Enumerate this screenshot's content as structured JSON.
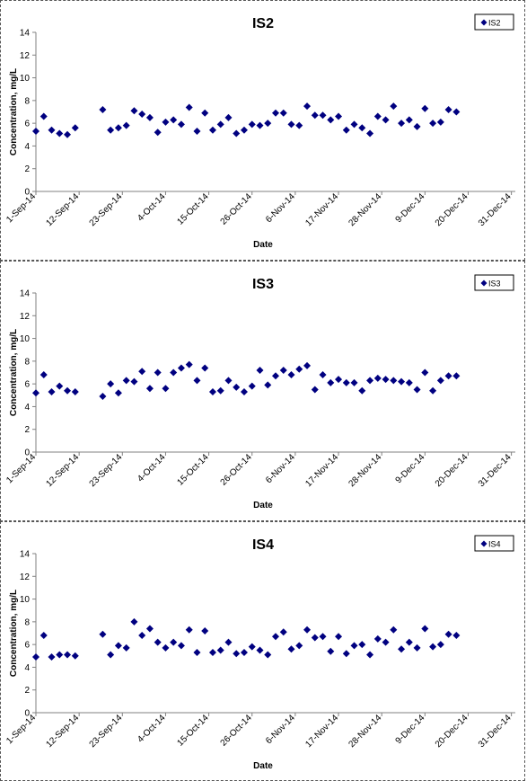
{
  "colors": {
    "marker": "#000080",
    "axis": "#808080",
    "text": "#000000",
    "plot_bg": "#ffffff"
  },
  "chart_data": [
    {
      "type": "scatter",
      "title": "IS2",
      "xlabel": "Date",
      "ylabel": "Concentration, mg/L",
      "legend": "top-right",
      "grid": false,
      "ylim": [
        0,
        14
      ],
      "yticks": [
        0,
        2,
        4,
        6,
        8,
        10,
        12,
        14
      ],
      "xlim": [
        "2014-09-01",
        "2015-01-01"
      ],
      "xticks": [
        "1-Sep-14",
        "12-Sep-14",
        "23-Sep-14",
        "4-Oct-14",
        "15-Oct-14",
        "26-Oct-14",
        "6-Nov-14",
        "17-Nov-14",
        "28-Nov-14",
        "9-Dec-14",
        "20-Dec-14",
        "31-Dec-14"
      ],
      "series": [
        {
          "name": "IS2",
          "points": [
            [
              "2014-09-01",
              5.3
            ],
            [
              "2014-09-03",
              6.6
            ],
            [
              "2014-09-05",
              5.4
            ],
            [
              "2014-09-07",
              5.1
            ],
            [
              "2014-09-09",
              5.0
            ],
            [
              "2014-09-11",
              5.6
            ],
            [
              "2014-09-18",
              7.2
            ],
            [
              "2014-09-20",
              5.4
            ],
            [
              "2014-09-22",
              5.6
            ],
            [
              "2014-09-24",
              5.8
            ],
            [
              "2014-09-26",
              7.1
            ],
            [
              "2014-09-28",
              6.8
            ],
            [
              "2014-09-30",
              6.5
            ],
            [
              "2014-10-02",
              5.2
            ],
            [
              "2014-10-04",
              6.1
            ],
            [
              "2014-10-06",
              6.3
            ],
            [
              "2014-10-08",
              5.9
            ],
            [
              "2014-10-10",
              7.4
            ],
            [
              "2014-10-12",
              5.3
            ],
            [
              "2014-10-14",
              6.9
            ],
            [
              "2014-10-16",
              5.4
            ],
            [
              "2014-10-18",
              5.9
            ],
            [
              "2014-10-20",
              6.5
            ],
            [
              "2014-10-22",
              5.1
            ],
            [
              "2014-10-24",
              5.4
            ],
            [
              "2014-10-26",
              5.9
            ],
            [
              "2014-10-28",
              5.8
            ],
            [
              "2014-10-30",
              6.0
            ],
            [
              "2014-11-01",
              6.9
            ],
            [
              "2014-11-03",
              6.9
            ],
            [
              "2014-11-05",
              5.9
            ],
            [
              "2014-11-07",
              5.8
            ],
            [
              "2014-11-09",
              7.5
            ],
            [
              "2014-11-11",
              6.7
            ],
            [
              "2014-11-13",
              6.7
            ],
            [
              "2014-11-15",
              6.3
            ],
            [
              "2014-11-17",
              6.6
            ],
            [
              "2014-11-19",
              5.4
            ],
            [
              "2014-11-21",
              5.9
            ],
            [
              "2014-11-23",
              5.6
            ],
            [
              "2014-11-25",
              5.1
            ],
            [
              "2014-11-27",
              6.6
            ],
            [
              "2014-11-29",
              6.3
            ],
            [
              "2014-12-01",
              7.5
            ],
            [
              "2014-12-03",
              6.0
            ],
            [
              "2014-12-05",
              6.3
            ],
            [
              "2014-12-07",
              5.7
            ],
            [
              "2014-12-09",
              7.3
            ],
            [
              "2014-12-11",
              6.0
            ],
            [
              "2014-12-13",
              6.1
            ],
            [
              "2014-12-15",
              7.2
            ],
            [
              "2014-12-17",
              7.0
            ]
          ]
        }
      ]
    },
    {
      "type": "scatter",
      "title": "IS3",
      "xlabel": "Date",
      "ylabel": "Concentration, mg/L",
      "legend": "top-right",
      "grid": false,
      "ylim": [
        0,
        14
      ],
      "yticks": [
        0,
        2,
        4,
        6,
        8,
        10,
        12,
        14
      ],
      "xlim": [
        "2014-09-01",
        "2015-01-01"
      ],
      "xticks": [
        "1-Sep-14",
        "12-Sep-14",
        "23-Sep-14",
        "4-Oct-14",
        "15-Oct-14",
        "26-Oct-14",
        "6-Nov-14",
        "17-Nov-14",
        "28-Nov-14",
        "9-Dec-14",
        "20-Dec-14",
        "31-Dec-14"
      ],
      "series": [
        {
          "name": "IS3",
          "points": [
            [
              "2014-09-01",
              5.2
            ],
            [
              "2014-09-03",
              6.8
            ],
            [
              "2014-09-05",
              5.3
            ],
            [
              "2014-09-07",
              5.8
            ],
            [
              "2014-09-09",
              5.4
            ],
            [
              "2014-09-11",
              5.3
            ],
            [
              "2014-09-18",
              4.9
            ],
            [
              "2014-09-20",
              6.0
            ],
            [
              "2014-09-22",
              5.2
            ],
            [
              "2014-09-24",
              6.3
            ],
            [
              "2014-09-26",
              6.2
            ],
            [
              "2014-09-28",
              7.1
            ],
            [
              "2014-09-30",
              5.6
            ],
            [
              "2014-10-02",
              7.0
            ],
            [
              "2014-10-04",
              5.6
            ],
            [
              "2014-10-06",
              7.0
            ],
            [
              "2014-10-08",
              7.4
            ],
            [
              "2014-10-10",
              7.7
            ],
            [
              "2014-10-12",
              6.3
            ],
            [
              "2014-10-14",
              7.4
            ],
            [
              "2014-10-16",
              5.3
            ],
            [
              "2014-10-18",
              5.4
            ],
            [
              "2014-10-20",
              6.3
            ],
            [
              "2014-10-22",
              5.7
            ],
            [
              "2014-10-24",
              5.3
            ],
            [
              "2014-10-26",
              5.8
            ],
            [
              "2014-10-28",
              7.2
            ],
            [
              "2014-10-30",
              5.9
            ],
            [
              "2014-11-01",
              6.7
            ],
            [
              "2014-11-03",
              7.2
            ],
            [
              "2014-11-05",
              6.8
            ],
            [
              "2014-11-07",
              7.3
            ],
            [
              "2014-11-09",
              7.6
            ],
            [
              "2014-11-11",
              5.5
            ],
            [
              "2014-11-13",
              6.8
            ],
            [
              "2014-11-15",
              6.1
            ],
            [
              "2014-11-17",
              6.4
            ],
            [
              "2014-11-19",
              6.1
            ],
            [
              "2014-11-21",
              6.1
            ],
            [
              "2014-11-23",
              5.4
            ],
            [
              "2014-11-25",
              6.3
            ],
            [
              "2014-11-27",
              6.5
            ],
            [
              "2014-11-29",
              6.4
            ],
            [
              "2014-12-01",
              6.3
            ],
            [
              "2014-12-03",
              6.2
            ],
            [
              "2014-12-05",
              6.1
            ],
            [
              "2014-12-07",
              5.5
            ],
            [
              "2014-12-09",
              7.0
            ],
            [
              "2014-12-11",
              5.4
            ],
            [
              "2014-12-13",
              6.3
            ],
            [
              "2014-12-15",
              6.7
            ],
            [
              "2014-12-17",
              6.7
            ]
          ]
        }
      ]
    },
    {
      "type": "scatter",
      "title": "IS4",
      "xlabel": "Date",
      "ylabel": "Concentration, mg/L",
      "legend": "top-right",
      "grid": false,
      "ylim": [
        0,
        14
      ],
      "yticks": [
        0,
        2,
        4,
        6,
        8,
        10,
        12,
        14
      ],
      "xlim": [
        "2014-09-01",
        "2015-01-01"
      ],
      "xticks": [
        "1-Sep-14",
        "12-Sep-14",
        "23-Sep-14",
        "4-Oct-14",
        "15-Oct-14",
        "26-Oct-14",
        "6-Nov-14",
        "17-Nov-14",
        "28-Nov-14",
        "9-Dec-14",
        "20-Dec-14",
        "31-Dec-14"
      ],
      "series": [
        {
          "name": "IS4",
          "points": [
            [
              "2014-09-01",
              4.9
            ],
            [
              "2014-09-03",
              6.8
            ],
            [
              "2014-09-05",
              4.9
            ],
            [
              "2014-09-07",
              5.1
            ],
            [
              "2014-09-09",
              5.1
            ],
            [
              "2014-09-11",
              5.0
            ],
            [
              "2014-09-18",
              6.9
            ],
            [
              "2014-09-20",
              5.1
            ],
            [
              "2014-09-22",
              5.9
            ],
            [
              "2014-09-24",
              5.7
            ],
            [
              "2014-09-26",
              8.0
            ],
            [
              "2014-09-28",
              6.8
            ],
            [
              "2014-09-30",
              7.4
            ],
            [
              "2014-10-02",
              6.2
            ],
            [
              "2014-10-04",
              5.7
            ],
            [
              "2014-10-06",
              6.2
            ],
            [
              "2014-10-08",
              5.9
            ],
            [
              "2014-10-10",
              7.3
            ],
            [
              "2014-10-12",
              5.3
            ],
            [
              "2014-10-14",
              7.2
            ],
            [
              "2014-10-16",
              5.3
            ],
            [
              "2014-10-18",
              5.5
            ],
            [
              "2014-10-20",
              6.2
            ],
            [
              "2014-10-22",
              5.2
            ],
            [
              "2014-10-24",
              5.3
            ],
            [
              "2014-10-26",
              5.8
            ],
            [
              "2014-10-28",
              5.5
            ],
            [
              "2014-10-30",
              5.1
            ],
            [
              "2014-11-01",
              6.7
            ],
            [
              "2014-11-03",
              7.1
            ],
            [
              "2014-11-05",
              5.6
            ],
            [
              "2014-11-07",
              5.9
            ],
            [
              "2014-11-09",
              7.3
            ],
            [
              "2014-11-11",
              6.6
            ],
            [
              "2014-11-13",
              6.7
            ],
            [
              "2014-11-15",
              5.4
            ],
            [
              "2014-11-17",
              6.7
            ],
            [
              "2014-11-19",
              5.2
            ],
            [
              "2014-11-21",
              5.9
            ],
            [
              "2014-11-23",
              6.0
            ],
            [
              "2014-11-25",
              5.1
            ],
            [
              "2014-11-27",
              6.5
            ],
            [
              "2014-11-29",
              6.2
            ],
            [
              "2014-12-01",
              7.3
            ],
            [
              "2014-12-03",
              5.6
            ],
            [
              "2014-12-05",
              6.2
            ],
            [
              "2014-12-07",
              5.7
            ],
            [
              "2014-12-09",
              7.4
            ],
            [
              "2014-12-11",
              5.8
            ],
            [
              "2014-12-13",
              6.0
            ],
            [
              "2014-12-15",
              6.9
            ],
            [
              "2014-12-17",
              6.8
            ]
          ]
        }
      ]
    }
  ]
}
